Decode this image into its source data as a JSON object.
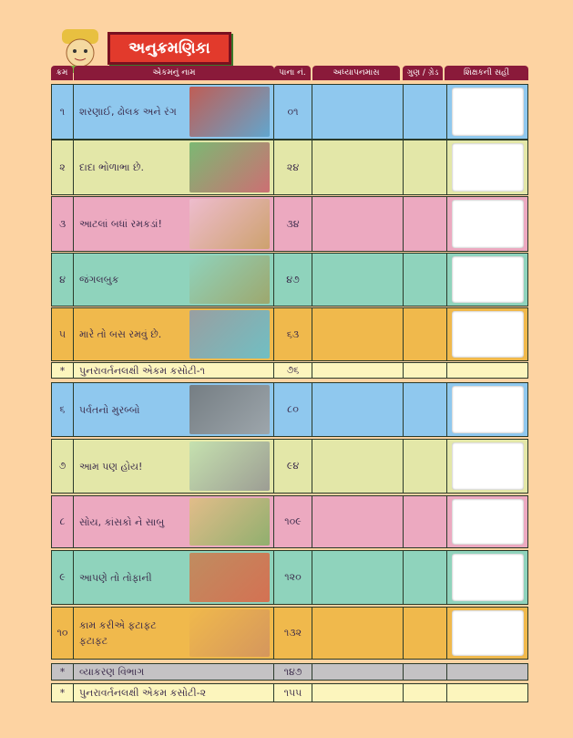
{
  "title": "અનુક્રમણિકા",
  "headers": [
    "ક્રમ",
    "એકમનું નામ",
    "પાના નં.",
    "અધ્યાપનમાસ",
    "ગુણ / ગ્રેડ",
    "શિક્ષકની સહી"
  ],
  "colors": {
    "blue": "#8fc8ee",
    "green": "#e3e7a8",
    "pink": "#eca9c0",
    "teal": "#8fd3bc",
    "orange": "#f0b94c",
    "cream": "#fcf5bd",
    "gray": "#c4c2c4",
    "header": "#8a1a3a"
  },
  "rows": [
    {
      "no": "૧",
      "name": "શરણાઈ, ઢોલક અને રંગ",
      "page": "૦૧",
      "color": "blue",
      "picture": true
    },
    {
      "no": "૨",
      "name": "દાદા ભોળાભા છે.",
      "page": "૨૪",
      "color": "green",
      "picture": true
    },
    {
      "no": "૩",
      "name": "આટલાં બધાં રમકડાં!",
      "page": "૩૪",
      "color": "pink",
      "picture": true
    },
    {
      "no": "૪",
      "name": "જંગલબુક",
      "page": "૪૭",
      "color": "teal",
      "picture": true
    },
    {
      "no": "૫",
      "name": "મારે તો બસ રમવું છે.",
      "page": "૬૩",
      "color": "orange",
      "picture": true
    },
    {
      "no": "*",
      "name": "પુનરાવર્તનલક્ષી એકમ કસોટી-૧",
      "page": "૭૬",
      "color": "cream",
      "picture": false
    },
    {
      "no": "૬",
      "name": "પર્વતનો મુરબ્બો",
      "page": "૮૦",
      "color": "blue",
      "picture": true
    },
    {
      "no": "૭",
      "name": "આમ પણ હોય!",
      "page": "૯૪",
      "color": "green",
      "picture": true
    },
    {
      "no": "૮",
      "name": "સોય, કાંસકો ને સાબુ",
      "page": "૧૦૯",
      "color": "pink",
      "picture": true
    },
    {
      "no": "૯",
      "name": "આપણે તો તોફાની",
      "page": "૧૨૦",
      "color": "teal",
      "picture": true
    },
    {
      "no": "૧૦",
      "name": "કામ કરીએ ફટાફટ ફટાફટ",
      "page": "૧૩૨",
      "color": "orange",
      "picture": true
    },
    {
      "no": "*",
      "name": "વ્યાકરણ વિભાગ",
      "page": "૧૪૭",
      "color": "gray",
      "picture": false
    },
    {
      "no": "*",
      "name": "પુનરાવર્તનલક્ષી એકમ કસોટી-૨",
      "page": "૧૫૫",
      "color": "cream",
      "picture": false
    }
  ]
}
